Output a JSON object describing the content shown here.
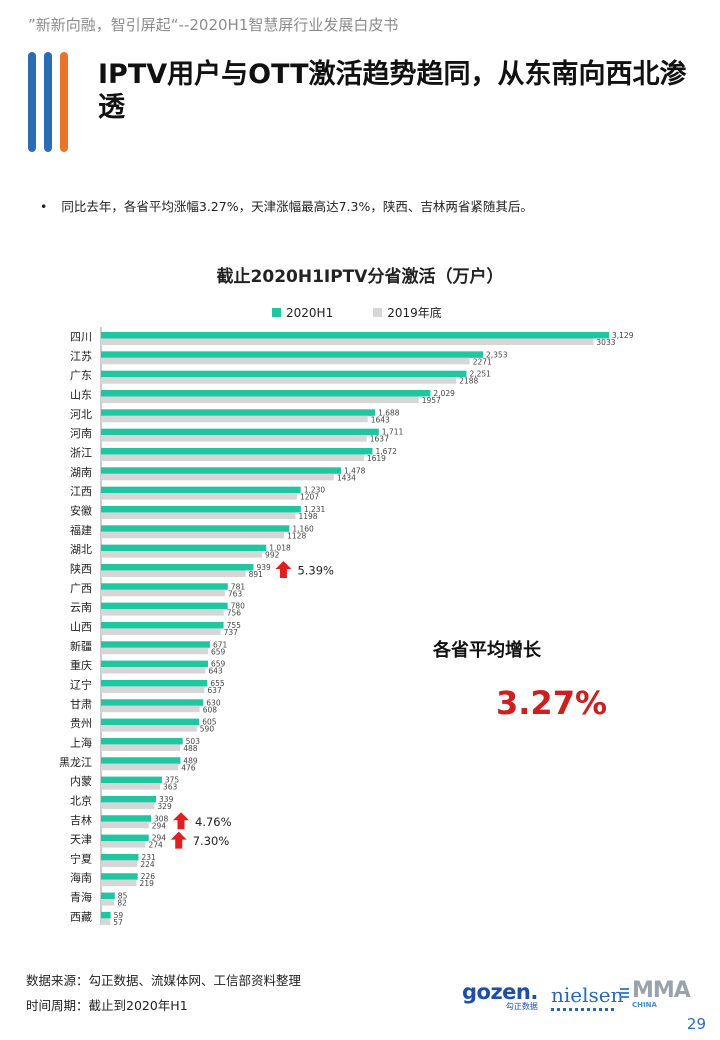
{
  "header": {
    "quote": "”新新向融，智引屏起“--2020H1智慧屏行业发展白皮书",
    "title": "IPTV用户与OTT激活趋势趋同，从东南向西北渗透"
  },
  "bullet": "同比去年，各省平均涨幅3.27%，天津涨幅最高达7.3%，陕西、吉林两省紧随其后。",
  "chart_data": {
    "type": "bar",
    "orientation": "horizontal",
    "title": "截止2020H1IPTV分省激活（万户）",
    "categories": [
      "四川",
      "江苏",
      "广东",
      "山东",
      "河北",
      "河南",
      "浙江",
      "湖南",
      "江西",
      "安徽",
      "福建",
      "湖北",
      "陕西",
      "广西",
      "云南",
      "山西",
      "新疆",
      "重庆",
      "辽宁",
      "甘肃",
      "贵州",
      "上海",
      "黑龙江",
      "内蒙",
      "北京",
      "吉林",
      "天津",
      "宁夏",
      "海南",
      "青海",
      "西藏"
    ],
    "series": [
      {
        "name": "2020H1",
        "color": "#1fc6a0",
        "values": [
          3129,
          2353,
          2251,
          2029,
          1688,
          1711,
          1672,
          1478,
          1230,
          1231,
          1160,
          1018,
          939,
          781,
          780,
          755,
          671,
          659,
          655,
          630,
          605,
          503,
          489,
          375,
          339,
          308,
          294,
          231,
          226,
          85,
          59
        ],
        "labels": [
          "3,129",
          "2,353",
          "2,251",
          "2,029",
          "1,688",
          "1,711",
          "1,672",
          "1,478",
          "1,230",
          "1,231",
          "1,160",
          "1,018",
          "939",
          "781",
          "780",
          "755",
          "671",
          "659",
          "655",
          "630",
          "605",
          "503",
          "489",
          "375",
          "339",
          "308",
          "294",
          "231",
          "226",
          "85",
          "59"
        ]
      },
      {
        "name": "2019年底",
        "color": "#d6d6d6",
        "values": [
          3033,
          2271,
          2188,
          1957,
          1643,
          1637,
          1619,
          1434,
          1207,
          1198,
          1128,
          992,
          891,
          763,
          756,
          737,
          659,
          643,
          637,
          608,
          590,
          488,
          476,
          363,
          329,
          294,
          274,
          224,
          219,
          82,
          57
        ],
        "labels": [
          "3033",
          "2271",
          "2188",
          "1957",
          "1643",
          "1637",
          "1619",
          "1434",
          "1207",
          "1198",
          "1128",
          "992",
          "891",
          "763",
          "756",
          "737",
          "659",
          "643",
          "637",
          "608",
          "590",
          "488",
          "476",
          "363",
          "329",
          "294",
          "274",
          "224",
          "219",
          "82",
          "57"
        ]
      }
    ],
    "xlim": [
      0,
      3129
    ],
    "grid": false,
    "legend": "top-center",
    "annotations": [
      {
        "category": "陕西",
        "text": "5.39%",
        "icon": "up-arrow-icon",
        "color": "#e02020"
      },
      {
        "category": "吉林",
        "text": "4.76%",
        "icon": "up-arrow-icon",
        "color": "#e02020"
      },
      {
        "category": "天津",
        "text": "7.30%",
        "icon": "up-arrow-icon",
        "color": "#e02020"
      }
    ]
  },
  "summary": {
    "label": "各省平均增长",
    "value": "3.27%",
    "value_color": "#cc1f1f"
  },
  "footer": {
    "source": "数据来源：勾正数据、流媒体网、工信部资料整理",
    "period": "时间周期：截止到2020年H1",
    "logos": {
      "gozen": "gozen.",
      "gozen_sub": "勾正数据",
      "nielsen": "nielsen",
      "mma": "MMA",
      "mma_sub": "CHINA"
    },
    "page_number": "29"
  }
}
